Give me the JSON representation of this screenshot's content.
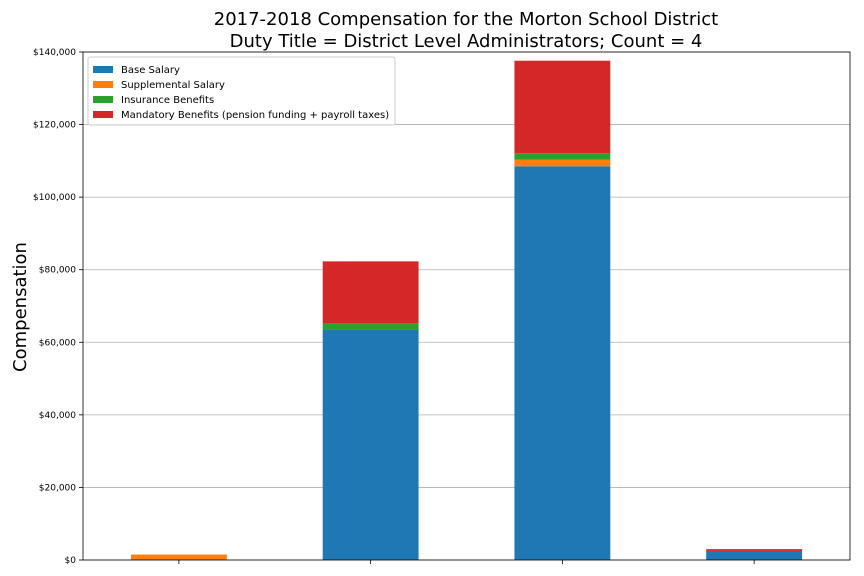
{
  "chart_data": {
    "type": "bar",
    "stacked": true,
    "title": "2017-2018 Compensation for the Morton School District",
    "subtitle": "Duty Title = District Level Administrators; Count = 4",
    "xlabel": "",
    "ylabel": "Compensation",
    "ylim": [
      0,
      140000
    ],
    "yticks": [
      0,
      20000,
      40000,
      60000,
      80000,
      100000,
      120000,
      140000
    ],
    "ytick_labels": [
      "$0",
      "$20,000",
      "$40,000",
      "$60,000",
      "$80,000",
      "$100,000",
      "$120,000",
      "$140,000"
    ],
    "grid": true,
    "legend_position": "top-left",
    "categories": [
      "",
      "",
      "",
      ""
    ],
    "series": [
      {
        "name": "Base Salary",
        "color": "#1f77b4",
        "values": [
          0,
          63500,
          108500,
          2500
        ]
      },
      {
        "name": "Supplemental Salary",
        "color": "#ff7f0e",
        "values": [
          1500,
          0,
          1800,
          0
        ]
      },
      {
        "name": "Insurance Benefits",
        "color": "#2ca02c",
        "values": [
          0,
          1800,
          1800,
          0
        ]
      },
      {
        "name": "Mandatory Benefits (pension funding + payroll taxes)",
        "color": "#d62728",
        "values": [
          0,
          17000,
          25500,
          500
        ]
      }
    ]
  }
}
